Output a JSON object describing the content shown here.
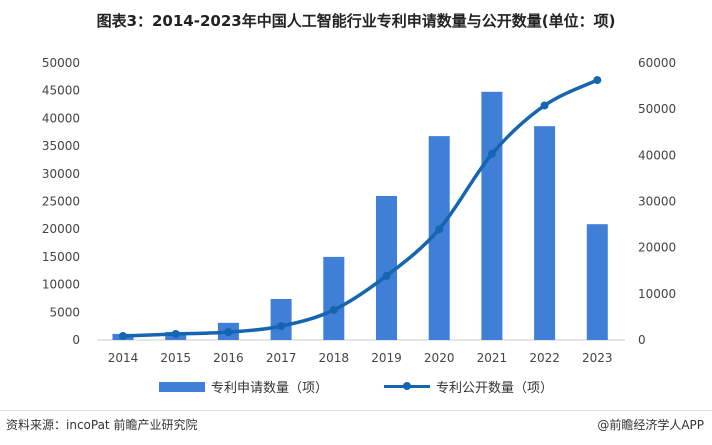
{
  "chart_data": {
    "type": "bar+line",
    "title": "图表3：2014-2023年中国人工智能行业专利申请数量与公开数量(单位：项)",
    "categories": [
      "2014",
      "2015",
      "2016",
      "2017",
      "2018",
      "2019",
      "2020",
      "2021",
      "2022",
      "2023"
    ],
    "series": [
      {
        "name": "专利申请数量（项）",
        "type": "bar",
        "axis": "left",
        "color": "#3f7fd8",
        "values": [
          1100,
          1450,
          3100,
          7400,
          15000,
          26000,
          36800,
          44800,
          38600,
          20900
        ]
      },
      {
        "name": "专利公开数量（项）",
        "type": "line",
        "axis": "right",
        "color": "#1565b0",
        "values": [
          870,
          1300,
          1700,
          3000,
          6500,
          13900,
          24000,
          40300,
          50800,
          56300
        ]
      }
    ],
    "left_axis": {
      "ylim": [
        0,
        50000
      ],
      "ticks": [
        "0",
        "5000",
        "10000",
        "15000",
        "20000",
        "25000",
        "30000",
        "35000",
        "40000",
        "45000",
        "50000"
      ]
    },
    "right_axis": {
      "ylim": [
        0,
        60000
      ],
      "ticks": [
        "0",
        "10000",
        "20000",
        "30000",
        "40000",
        "50000",
        "60000"
      ]
    },
    "legend_placement": "bottom"
  },
  "footer": {
    "source": "资料来源：incoPat 前瞻产业研究院",
    "brand": "@前瞻经济学人APP"
  }
}
